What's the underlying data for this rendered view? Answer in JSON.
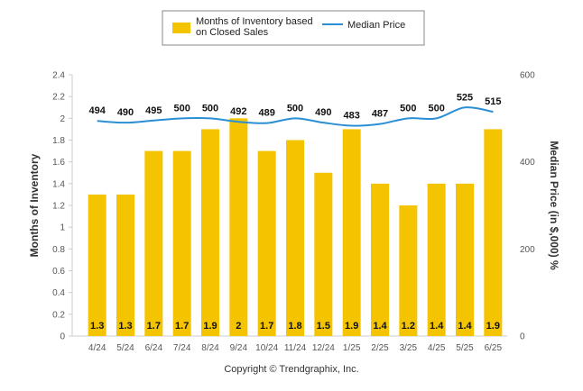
{
  "chart_data": {
    "type": "bar",
    "title": "",
    "categories": [
      "4/24",
      "5/24",
      "6/24",
      "7/24",
      "8/24",
      "9/24",
      "10/24",
      "11/24",
      "12/24",
      "1/25",
      "2/25",
      "3/25",
      "4/25",
      "5/25",
      "6/25"
    ],
    "series": [
      {
        "name": "Months of Inventory based on Closed Sales",
        "type": "bar",
        "axis": "left",
        "color": "#F5C400",
        "values": [
          1.3,
          1.3,
          1.7,
          1.7,
          1.9,
          2,
          1.7,
          1.8,
          1.5,
          1.9,
          1.4,
          1.2,
          1.4,
          1.4,
          1.9
        ]
      },
      {
        "name": "Median Price",
        "type": "line",
        "axis": "right",
        "color": "#2B8FD6",
        "values": [
          494,
          490,
          495,
          500,
          500,
          492,
          489,
          500,
          490,
          483,
          487,
          500,
          500,
          525,
          515
        ]
      }
    ],
    "ylabel": "Months of Inventory",
    "ylim": [
      0,
      2.4
    ],
    "yticks": [
      "0",
      "0.2",
      "0.4",
      "0.6",
      "0.8",
      "1",
      "1.2",
      "1.4",
      "1.6",
      "1.8",
      "2",
      "2.2",
      "2.4"
    ],
    "y2label": "Median Price (in $,000) %",
    "y2lim": [
      0,
      600
    ],
    "y2ticks": [
      "0",
      "200",
      "400",
      "600"
    ],
    "grid": false,
    "legend_position": "top-center",
    "legend": [
      {
        "label_lines": [
          "Months of Inventory based",
          "on Closed Sales"
        ],
        "marker": "bar",
        "color": "#F5C400"
      },
      {
        "label_lines": [
          "Median Price"
        ],
        "marker": "line",
        "color": "#2B8FD6"
      }
    ]
  },
  "footer": {
    "copyright": "Copyright © Trendgraphix, Inc."
  }
}
